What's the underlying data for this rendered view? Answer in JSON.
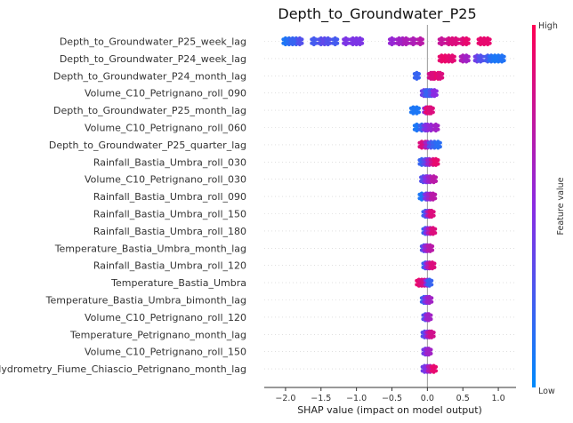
{
  "chart_data": {
    "type": "scatter",
    "subtype": "shap-beeswarm",
    "title": "Depth_to_Groundwater_P25",
    "xlabel": "SHAP value (impact on model output)",
    "xlim": [
      -2.3,
      1.25
    ],
    "xticks": [
      -2.0,
      -1.5,
      -1.0,
      -0.5,
      0.0,
      0.5,
      1.0
    ],
    "xtick_labels": [
      "−2.0",
      "−1.5",
      "−1.0",
      "−0.5",
      "0.0",
      "0.5",
      "1.0"
    ],
    "colorbar": {
      "label": "Feature value",
      "high": "High",
      "low": "Low",
      "low_color": "#008afb",
      "high_color": "#ff0052"
    },
    "features": [
      {
        "name": "Depth_to_Groundwater_P25_week_lag",
        "points": [
          [
            -2.0,
            0.1
          ],
          [
            -1.95,
            0.15
          ],
          [
            -1.9,
            0.2
          ],
          [
            -1.85,
            0.2
          ],
          [
            -1.8,
            0.3
          ],
          [
            -1.6,
            0.25
          ],
          [
            -1.5,
            0.3
          ],
          [
            -1.45,
            0.35
          ],
          [
            -1.4,
            0.3
          ],
          [
            -1.3,
            0.25
          ],
          [
            -1.15,
            0.45
          ],
          [
            -1.05,
            0.45
          ],
          [
            -1.0,
            0.45
          ],
          [
            -0.95,
            0.45
          ],
          [
            -0.5,
            0.55
          ],
          [
            -0.4,
            0.6
          ],
          [
            -0.35,
            0.6
          ],
          [
            -0.3,
            0.65
          ],
          [
            -0.2,
            0.65
          ],
          [
            -0.1,
            0.7
          ],
          [
            0.2,
            0.75
          ],
          [
            0.3,
            0.8
          ],
          [
            0.35,
            0.85
          ],
          [
            0.4,
            0.85
          ],
          [
            0.5,
            0.85
          ],
          [
            0.55,
            0.9
          ],
          [
            0.75,
            0.9
          ],
          [
            0.8,
            0.9
          ],
          [
            0.85,
            0.9
          ]
        ]
      },
      {
        "name": "Depth_to_Groundwater_P24_week_lag",
        "points": [
          [
            0.2,
            0.9
          ],
          [
            0.25,
            0.92
          ],
          [
            0.3,
            0.9
          ],
          [
            0.35,
            0.88
          ],
          [
            0.5,
            0.65
          ],
          [
            0.55,
            0.6
          ],
          [
            0.7,
            0.4
          ],
          [
            0.75,
            0.3
          ],
          [
            0.85,
            0.25
          ],
          [
            0.9,
            0.15
          ],
          [
            0.95,
            0.1
          ],
          [
            1.0,
            0.1
          ],
          [
            1.05,
            0.12
          ]
        ]
      },
      {
        "name": "Depth_to_Groundwater_P24_month_lag",
        "points": [
          [
            -0.15,
            0.2
          ],
          [
            0.05,
            0.8
          ],
          [
            0.08,
            0.85
          ],
          [
            0.1,
            0.85
          ],
          [
            0.15,
            0.9
          ],
          [
            0.18,
            0.85
          ]
        ]
      },
      {
        "name": "Volume_C10_Petrignano_roll_090",
        "points": [
          [
            -0.05,
            0.4
          ],
          [
            -0.02,
            0.3
          ],
          [
            0.0,
            0.2
          ],
          [
            0.03,
            0.2
          ],
          [
            0.06,
            0.3
          ],
          [
            0.1,
            0.5
          ]
        ]
      },
      {
        "name": "Depth_to_Groundwater_P25_month_lag",
        "points": [
          [
            -0.2,
            0.1
          ],
          [
            -0.15,
            0.1
          ],
          [
            -0.02,
            0.5
          ],
          [
            0.0,
            0.9
          ],
          [
            0.03,
            0.9
          ],
          [
            0.05,
            0.85
          ]
        ]
      },
      {
        "name": "Volume_C10_Petrignano_roll_060",
        "points": [
          [
            -0.15,
            0.1
          ],
          [
            -0.08,
            0.2
          ],
          [
            -0.03,
            0.4
          ],
          [
            0.0,
            0.5
          ],
          [
            0.05,
            0.55
          ],
          [
            0.12,
            0.6
          ]
        ]
      },
      {
        "name": "Depth_to_Groundwater_P25_quarter_lag",
        "points": [
          [
            -0.08,
            0.85
          ],
          [
            -0.03,
            0.8
          ],
          [
            0.0,
            0.6
          ],
          [
            0.05,
            0.3
          ],
          [
            0.1,
            0.2
          ],
          [
            0.15,
            0.15
          ]
        ]
      },
      {
        "name": "Rainfall_Bastia_Umbra_roll_030",
        "points": [
          [
            -0.08,
            0.2
          ],
          [
            -0.03,
            0.3
          ],
          [
            0.0,
            0.4
          ],
          [
            0.03,
            0.6
          ],
          [
            0.08,
            0.8
          ],
          [
            0.12,
            0.9
          ]
        ]
      },
      {
        "name": "Volume_C10_Petrignano_roll_030",
        "points": [
          [
            -0.06,
            0.3
          ],
          [
            -0.02,
            0.4
          ],
          [
            0.0,
            0.5
          ],
          [
            0.04,
            0.6
          ],
          [
            0.09,
            0.7
          ]
        ]
      },
      {
        "name": "Rainfall_Bastia_Umbra_roll_090",
        "points": [
          [
            -0.08,
            0.1
          ],
          [
            -0.02,
            0.3
          ],
          [
            0.0,
            0.5
          ],
          [
            0.04,
            0.6
          ],
          [
            0.08,
            0.7
          ]
        ]
      },
      {
        "name": "Rainfall_Bastia_Umbra_roll_150",
        "points": [
          [
            -0.03,
            0.2
          ],
          [
            0.0,
            0.4
          ],
          [
            0.03,
            0.7
          ],
          [
            0.06,
            0.85
          ]
        ]
      },
      {
        "name": "Rainfall_Bastia_Umbra_roll_180",
        "points": [
          [
            -0.03,
            0.2
          ],
          [
            0.0,
            0.5
          ],
          [
            0.04,
            0.7
          ],
          [
            0.08,
            0.85
          ]
        ]
      },
      {
        "name": "Temperature_Bastia_Umbra_month_lag",
        "points": [
          [
            -0.05,
            0.3
          ],
          [
            -0.02,
            0.5
          ],
          [
            0.0,
            0.6
          ],
          [
            0.04,
            0.7
          ]
        ]
      },
      {
        "name": "Rainfall_Bastia_Umbra_roll_120",
        "points": [
          [
            -0.03,
            0.2
          ],
          [
            0.0,
            0.5
          ],
          [
            0.03,
            0.7
          ],
          [
            0.07,
            0.85
          ]
        ]
      },
      {
        "name": "Temperature_Bastia_Umbra",
        "points": [
          [
            -0.12,
            0.9
          ],
          [
            -0.08,
            0.85
          ],
          [
            -0.04,
            0.8
          ],
          [
            0.0,
            0.5
          ],
          [
            0.03,
            0.2
          ]
        ]
      },
      {
        "name": "Temperature_Bastia_Umbra_bimonth_lag",
        "points": [
          [
            -0.05,
            0.2
          ],
          [
            -0.02,
            0.4
          ],
          [
            0.0,
            0.5
          ],
          [
            0.03,
            0.6
          ]
        ]
      },
      {
        "name": "Volume_C10_Petrignano_roll_120",
        "points": [
          [
            -0.03,
            0.3
          ],
          [
            0.0,
            0.5
          ],
          [
            0.02,
            0.6
          ]
        ]
      },
      {
        "name": "Temperature_Petrignano_month_lag",
        "points": [
          [
            -0.04,
            0.3
          ],
          [
            0.0,
            0.5
          ],
          [
            0.03,
            0.7
          ],
          [
            0.06,
            0.8
          ]
        ]
      },
      {
        "name": "Volume_C10_Petrignano_roll_150",
        "points": [
          [
            -0.03,
            0.4
          ],
          [
            0.0,
            0.5
          ],
          [
            0.02,
            0.6
          ]
        ]
      },
      {
        "name": "Hydrometry_Fiume_Chiascio_Petrignano_month_lag",
        "points": [
          [
            -0.04,
            0.4
          ],
          [
            0.0,
            0.5
          ],
          [
            0.04,
            0.7
          ],
          [
            0.09,
            0.9
          ]
        ]
      }
    ]
  }
}
